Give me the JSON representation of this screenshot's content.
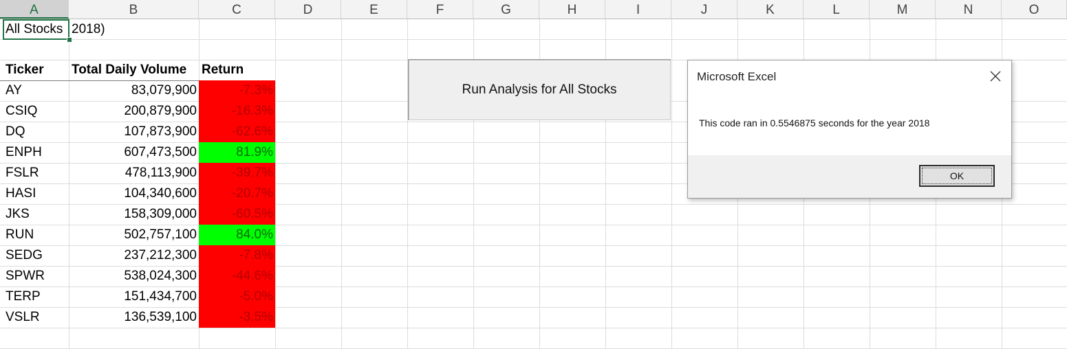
{
  "column_headers": [
    "A",
    "B",
    "C",
    "D",
    "E",
    "F",
    "G",
    "H",
    "I",
    "J",
    "K",
    "L",
    "M",
    "N",
    "O"
  ],
  "title_cell": {
    "text": "All Stocks",
    "overflow": "2018)"
  },
  "table": {
    "headers": [
      "Ticker",
      "Total Daily Volume",
      "Return"
    ],
    "rows": [
      {
        "ticker": "AY",
        "volume": "83,079,900",
        "ret": "-7.3%",
        "positive": false
      },
      {
        "ticker": "CSIQ",
        "volume": "200,879,900",
        "ret": "-16.3%",
        "positive": false
      },
      {
        "ticker": "DQ",
        "volume": "107,873,900",
        "ret": "-62.6%",
        "positive": false
      },
      {
        "ticker": "ENPH",
        "volume": "607,473,500",
        "ret": "81.9%",
        "positive": true
      },
      {
        "ticker": "FSLR",
        "volume": "478,113,900",
        "ret": "-39.7%",
        "positive": false
      },
      {
        "ticker": "HASI",
        "volume": "104,340,600",
        "ret": "-20.7%",
        "positive": false
      },
      {
        "ticker": "JKS",
        "volume": "158,309,000",
        "ret": "-60.5%",
        "positive": false
      },
      {
        "ticker": "RUN",
        "volume": "502,757,100",
        "ret": "84.0%",
        "positive": true
      },
      {
        "ticker": "SEDG",
        "volume": "237,212,300",
        "ret": "-7.8%",
        "positive": false
      },
      {
        "ticker": "SPWR",
        "volume": "538,024,300",
        "ret": "-44.6%",
        "positive": false
      },
      {
        "ticker": "TERP",
        "volume": "151,434,700",
        "ret": "-5.0%",
        "positive": false
      },
      {
        "ticker": "VSLR",
        "volume": "136,539,100",
        "ret": "-3.5%",
        "positive": false
      }
    ]
  },
  "run_button": {
    "label": "Run Analysis for All Stocks"
  },
  "dialog": {
    "title": "Microsoft Excel",
    "message": "This code ran in 0.5546875 seconds for the year 2018",
    "ok_label": "OK",
    "close_icon": "close-icon"
  },
  "colors": {
    "negative": "#ff0000",
    "positive": "#00ff00",
    "excel_green": "#217346"
  }
}
